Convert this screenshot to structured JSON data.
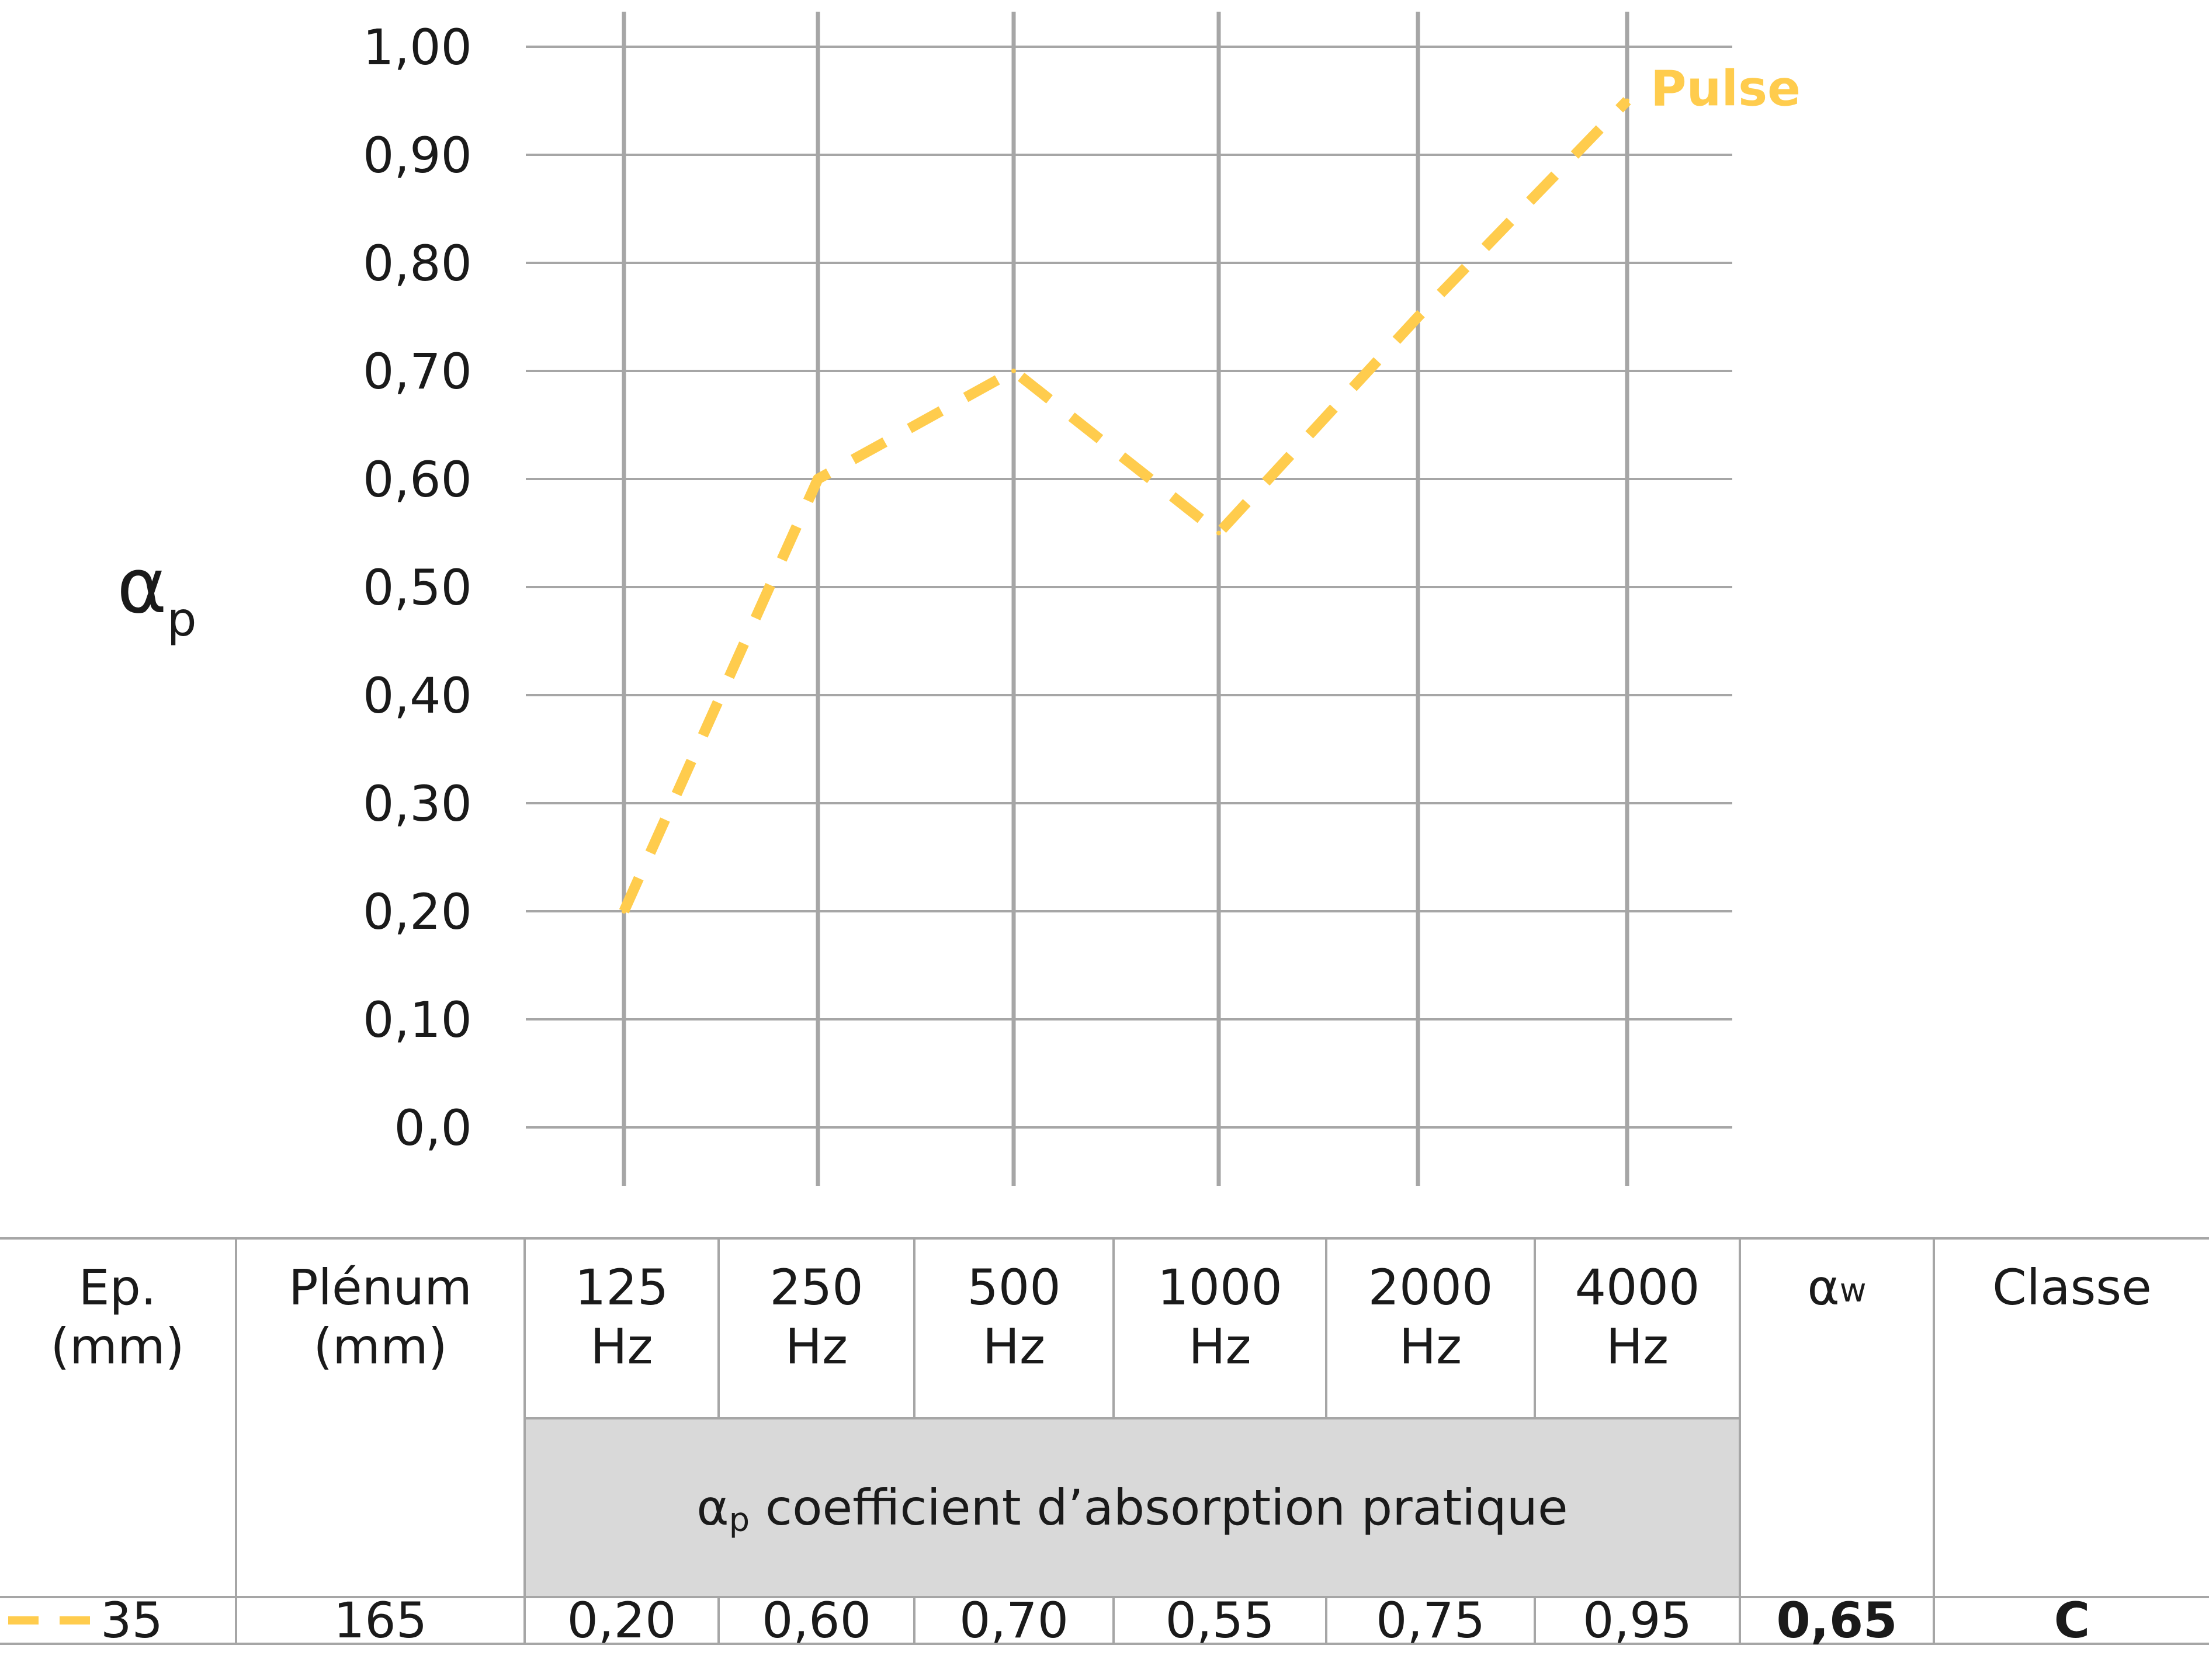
{
  "chart_data": {
    "type": "line",
    "ylabel": "α",
    "ylabel_sub": "p",
    "y_ticks": [
      "1,00",
      "0,90",
      "0,80",
      "0,70",
      "0,60",
      "0,50",
      "0,40",
      "0,30",
      "0,20",
      "0,10",
      "0,0"
    ],
    "ylim": [
      0,
      1.0
    ],
    "categories": [
      "125",
      "250",
      "500",
      "1000",
      "2000",
      "4000"
    ],
    "series": [
      {
        "name": "Pulse",
        "values": [
          0.2,
          0.6,
          0.7,
          0.55,
          0.75,
          0.95
        ],
        "color": "#ffcc4d",
        "style": "dashed"
      }
    ],
    "grid": true
  },
  "table": {
    "headers": {
      "ep": "Ep.\n(mm)",
      "plenum": "Plénum\n(mm)",
      "freqs": [
        "125\nHz",
        "250\nHz",
        "500\nHz",
        "1000\nHz",
        "2000\nHz",
        "4000\nHz"
      ],
      "aw": "α",
      "aw_sub": "w",
      "classe": "Classe"
    },
    "subheader": {
      "alpha": "α",
      "alpha_sub": "p",
      "text": " coefficient d’absorption pratique"
    },
    "row": {
      "ep": "35",
      "plenum": "165",
      "values": [
        "0,20",
        "0,60",
        "0,70",
        "0,55",
        "0,75",
        "0,95"
      ],
      "aw": "0,65",
      "classe": "C"
    }
  }
}
